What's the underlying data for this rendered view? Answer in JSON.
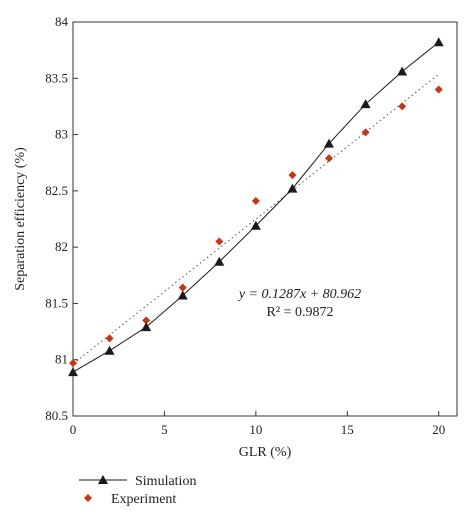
{
  "chart_data": {
    "type": "scatter",
    "xlabel": "GLR (%)",
    "ylabel": "Separation efficiency (%)",
    "xlim": [
      0,
      21
    ],
    "ylim": [
      80.5,
      84
    ],
    "xticks": [
      "0",
      "5",
      "10",
      "15",
      "20"
    ],
    "yticks": [
      "80.5",
      "81",
      "81.5",
      "82",
      "82.5",
      "83",
      "83.5",
      "84"
    ],
    "series": [
      {
        "name": "Simulation",
        "kind": "line-with-markers",
        "marker": "triangle",
        "color": "#1a1a1a",
        "x": [
          0,
          2,
          4,
          6,
          8,
          10,
          12,
          14,
          16,
          18,
          20
        ],
        "y": [
          80.89,
          81.08,
          81.29,
          81.57,
          81.87,
          82.19,
          82.52,
          82.92,
          83.27,
          83.56,
          83.82
        ]
      },
      {
        "name": "Experiment",
        "kind": "scatter",
        "marker": "diamond",
        "color": "#cc3311",
        "x": [
          0,
          2,
          4,
          6,
          8,
          10,
          12,
          14,
          16,
          18,
          20
        ],
        "y": [
          80.97,
          81.19,
          81.35,
          81.64,
          82.05,
          82.41,
          82.64,
          82.79,
          83.02,
          83.25,
          83.4
        ]
      }
    ],
    "fit_line": {
      "style": "dotted",
      "color": "#555555",
      "slope": 0.1287,
      "intercept": 80.962,
      "x_range": [
        0,
        20
      ]
    },
    "annotation": {
      "equation": "y = 0.1287x + 80.962",
      "r2": "R² = 0.9872"
    },
    "legend_position": "bottom-left"
  }
}
